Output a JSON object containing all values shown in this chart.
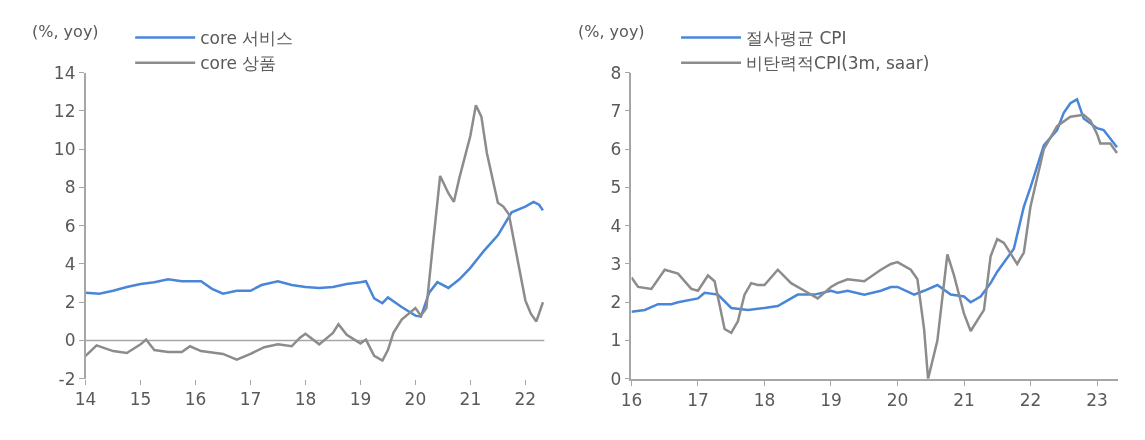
{
  "chart_data": [
    {
      "type": "line",
      "ylabel": "(%, yoy)",
      "xlim": [
        14,
        22.35
      ],
      "xticks": [
        14,
        15,
        16,
        17,
        18,
        19,
        20,
        21,
        22
      ],
      "ylim": [
        -2,
        14
      ],
      "yticks": [
        -2,
        0,
        2,
        4,
        6,
        8,
        10,
        12,
        14
      ],
      "grid": false,
      "legend": "top left",
      "line_style": "solid",
      "marker": "none",
      "ref_lines": [
        {
          "axis": "y",
          "value": 0,
          "color": "#a6a6a6"
        }
      ],
      "series": [
        {
          "name": "core 서비스",
          "color": "#4a86d8",
          "x": [
            14.0,
            14.25,
            14.5,
            14.75,
            15.0,
            15.25,
            15.5,
            15.75,
            16.0,
            16.1,
            16.3,
            16.5,
            16.75,
            17.0,
            17.2,
            17.5,
            17.75,
            18.0,
            18.25,
            18.5,
            18.75,
            19.0,
            19.1,
            19.25,
            19.4,
            19.5,
            19.75,
            20.0,
            20.1,
            20.25,
            20.4,
            20.6,
            20.8,
            21.0,
            21.25,
            21.5,
            21.75,
            22.0,
            22.15,
            22.25,
            22.32
          ],
          "values": [
            2.5,
            2.45,
            2.6,
            2.8,
            2.95,
            3.05,
            3.2,
            3.1,
            3.1,
            3.1,
            2.7,
            2.45,
            2.6,
            2.6,
            2.9,
            3.1,
            2.9,
            2.8,
            2.75,
            2.8,
            2.95,
            3.05,
            3.1,
            2.2,
            1.95,
            2.25,
            1.75,
            1.3,
            1.25,
            2.5,
            3.05,
            2.75,
            3.2,
            3.8,
            4.7,
            5.5,
            6.7,
            7.0,
            7.25,
            7.1,
            6.8
          ]
        },
        {
          "name": "core 상품",
          "color": "#8c8c8c",
          "x": [
            14.0,
            14.2,
            14.5,
            14.75,
            15.0,
            15.1,
            15.25,
            15.5,
            15.75,
            15.9,
            16.1,
            16.5,
            16.75,
            17.0,
            17.25,
            17.5,
            17.75,
            17.9,
            18.0,
            18.25,
            18.5,
            18.6,
            18.75,
            19.0,
            19.1,
            19.25,
            19.4,
            19.5,
            19.6,
            19.75,
            20.0,
            20.1,
            20.2,
            20.3,
            20.45,
            20.6,
            20.7,
            20.8,
            21.0,
            21.1,
            21.2,
            21.3,
            21.5,
            21.6,
            21.7,
            22.0,
            22.1,
            22.2,
            22.32
          ],
          "values": [
            -0.8,
            -0.25,
            -0.55,
            -0.65,
            -0.2,
            0.05,
            -0.5,
            -0.6,
            -0.6,
            -0.3,
            -0.55,
            -0.7,
            -1.0,
            -0.7,
            -0.35,
            -0.2,
            -0.3,
            0.15,
            0.35,
            -0.2,
            0.4,
            0.85,
            0.3,
            -0.15,
            0.05,
            -0.8,
            -1.05,
            -0.5,
            0.4,
            1.1,
            1.7,
            1.3,
            1.7,
            4.5,
            8.6,
            7.7,
            7.25,
            8.5,
            10.7,
            12.3,
            11.7,
            9.8,
            7.2,
            7.0,
            6.6,
            2.1,
            1.4,
            1.0,
            2.0
          ]
        }
      ]
    },
    {
      "type": "line",
      "ylabel": "(%, yoy)",
      "xlim": [
        16,
        23.32
      ],
      "xticks": [
        16,
        17,
        18,
        19,
        20,
        21,
        22,
        23
      ],
      "ylim": [
        0,
        8
      ],
      "yticks": [
        0,
        1,
        2,
        3,
        4,
        5,
        6,
        7,
        8
      ],
      "grid": false,
      "legend": "top left",
      "line_style": "solid",
      "marker": "none",
      "series": [
        {
          "name": "절사평균 CPI",
          "color": "#4a86d8",
          "x": [
            16.0,
            16.2,
            16.4,
            16.6,
            16.7,
            17.0,
            17.1,
            17.3,
            17.5,
            17.75,
            18.0,
            18.2,
            18.5,
            18.75,
            19.0,
            19.1,
            19.25,
            19.5,
            19.75,
            19.9,
            20.0,
            20.25,
            20.4,
            20.6,
            20.8,
            21.0,
            21.1,
            21.25,
            21.4,
            21.5,
            21.75,
            21.9,
            22.0,
            22.2,
            22.4,
            22.5,
            22.6,
            22.7,
            22.8,
            23.0,
            23.1,
            23.3
          ],
          "values": [
            1.75,
            1.8,
            1.95,
            1.95,
            2.0,
            2.1,
            2.25,
            2.2,
            1.85,
            1.8,
            1.85,
            1.9,
            2.2,
            2.2,
            2.3,
            2.25,
            2.3,
            2.2,
            2.3,
            2.4,
            2.4,
            2.2,
            2.3,
            2.45,
            2.2,
            2.15,
            2.0,
            2.15,
            2.5,
            2.8,
            3.4,
            4.5,
            5.0,
            6.1,
            6.5,
            6.95,
            7.2,
            7.3,
            6.8,
            6.55,
            6.5,
            6.05
          ]
        },
        {
          "name": "비탄력적CPI(3m, saar)",
          "color": "#8c8c8c",
          "x": [
            16.0,
            16.1,
            16.3,
            16.5,
            16.7,
            16.9,
            17.0,
            17.15,
            17.25,
            17.4,
            17.5,
            17.6,
            17.7,
            17.8,
            17.9,
            18.0,
            18.2,
            18.4,
            18.6,
            18.8,
            19.0,
            19.1,
            19.25,
            19.5,
            19.75,
            19.9,
            20.0,
            20.2,
            20.3,
            20.4,
            20.46,
            20.6,
            20.7,
            20.75,
            20.85,
            21.0,
            21.1,
            21.3,
            21.4,
            21.5,
            21.6,
            21.8,
            21.9,
            22.0,
            22.2,
            22.4,
            22.6,
            22.8,
            22.9,
            23.0,
            23.05,
            23.2,
            23.3
          ],
          "values": [
            2.65,
            2.4,
            2.35,
            2.85,
            2.75,
            2.35,
            2.3,
            2.7,
            2.55,
            1.3,
            1.2,
            1.5,
            2.2,
            2.5,
            2.45,
            2.45,
            2.85,
            2.5,
            2.3,
            2.1,
            2.4,
            2.5,
            2.6,
            2.55,
            2.85,
            3.0,
            3.05,
            2.85,
            2.6,
            1.3,
            0.0,
            1.0,
            2.5,
            3.25,
            2.7,
            1.7,
            1.25,
            1.8,
            3.2,
            3.65,
            3.55,
            3.0,
            3.3,
            4.5,
            6.0,
            6.6,
            6.85,
            6.9,
            6.75,
            6.4,
            6.15,
            6.15,
            5.9
          ]
        }
      ]
    }
  ]
}
